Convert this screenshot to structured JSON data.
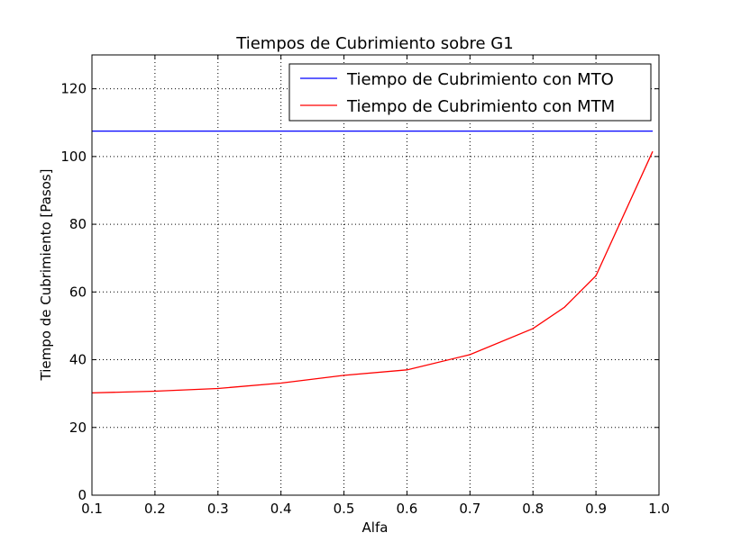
{
  "chart_data": {
    "type": "line",
    "title": "Tiempos de Cubrimiento sobre G1",
    "xlabel": "Alfa",
    "ylabel": "Tiempo de Cubrimiento [Pasos]",
    "xlim": [
      0.1,
      1.0
    ],
    "ylim": [
      0,
      130
    ],
    "xticks": [
      0.1,
      0.2,
      0.3,
      0.4,
      0.5,
      0.6,
      0.7,
      0.8,
      0.9,
      1.0
    ],
    "xtick_labels": [
      "0.1",
      "0.2",
      "0.3",
      "0.4",
      "0.5",
      "0.6",
      "0.7",
      "0.8",
      "0.9",
      "1.0"
    ],
    "yticks": [
      0,
      20,
      40,
      60,
      80,
      100,
      120
    ],
    "ytick_labels": [
      "0",
      "20",
      "40",
      "60",
      "80",
      "100",
      "120"
    ],
    "grid": true,
    "legend_position": "top-right",
    "series": [
      {
        "name": "Tiempo de Cubrimiento con MTO",
        "color": "#0000ff",
        "x": [
          0.1,
          0.99
        ],
        "y": [
          107.5,
          107.5
        ]
      },
      {
        "name": "Tiempo de Cubrimiento con MTM",
        "color": "#ff0000",
        "x": [
          0.1,
          0.2,
          0.3,
          0.4,
          0.5,
          0.6,
          0.7,
          0.8,
          0.85,
          0.9,
          0.99
        ],
        "y": [
          30.2,
          30.7,
          31.5,
          33.1,
          35.4,
          37.0,
          41.5,
          49.2,
          55.5,
          64.8,
          101.5
        ]
      }
    ]
  }
}
